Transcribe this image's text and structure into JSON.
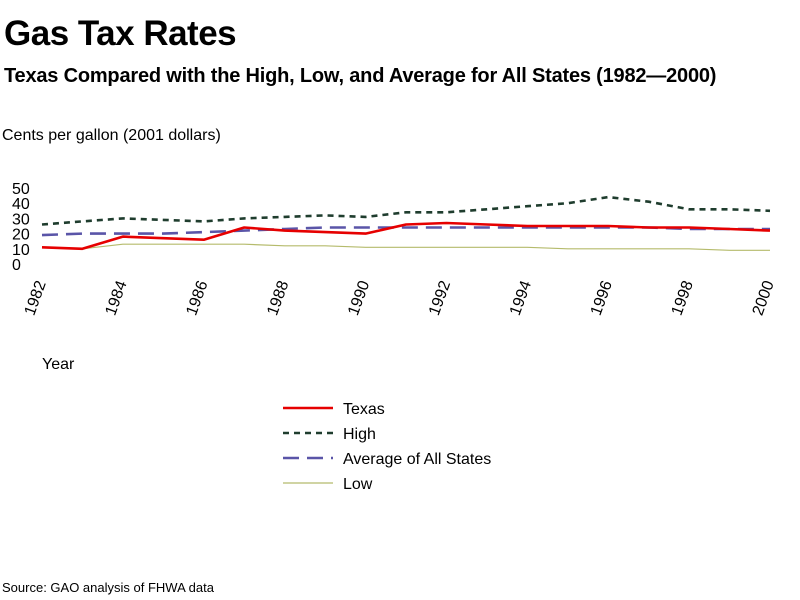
{
  "chart_data": {
    "type": "line",
    "title": "Gas Tax Rates",
    "subtitle": "Texas Compared with the High, Low, and Average for All States (1982—2000)",
    "ylabel": "Cents per gallon (2001 dollars)",
    "xlabel": "Year",
    "source": "Source: GAO analysis of FHWA data",
    "ylim": [
      0,
      50
    ],
    "yticks": [
      "0",
      "10",
      "20",
      "30",
      "40",
      "50"
    ],
    "xlim": [
      1982,
      2000
    ],
    "xticks": [
      "1982",
      "1984",
      "1986",
      "1988",
      "1990",
      "1992",
      "1994",
      "1996",
      "1998",
      "2000"
    ],
    "grid": false,
    "legend_position": "bottom-center",
    "x": [
      1982,
      1983,
      1984,
      1985,
      1986,
      1987,
      1988,
      1989,
      1990,
      1991,
      1992,
      1993,
      1994,
      1995,
      1996,
      1997,
      1998,
      1999,
      2000
    ],
    "series": [
      {
        "name": "Texas",
        "color": "#e60000",
        "style": "solid",
        "values": [
          11,
          10,
          18,
          17,
          16,
          24,
          22,
          21,
          20,
          26,
          27,
          26,
          25,
          25,
          25,
          24,
          24,
          23,
          22
        ]
      },
      {
        "name": "High",
        "color": "#1f3d2e",
        "style": "dotted",
        "values": [
          26,
          28,
          30,
          29,
          28,
          30,
          31,
          32,
          31,
          34,
          34,
          36,
          38,
          40,
          44,
          41,
          36,
          36,
          35
        ]
      },
      {
        "name": "Average of All States",
        "color": "#5a55a8",
        "style": "dashed",
        "values": [
          19,
          20,
          20,
          20,
          21,
          22,
          23,
          24,
          24,
          24,
          24,
          24,
          24,
          24,
          24,
          24,
          23,
          23,
          23
        ]
      },
      {
        "name": "Low",
        "color": "#b5bb6c",
        "style": "solid-thin",
        "values": [
          11,
          10,
          13,
          13,
          13,
          13,
          12,
          12,
          11,
          11,
          11,
          11,
          11,
          10,
          10,
          10,
          10,
          9,
          9
        ]
      }
    ]
  }
}
